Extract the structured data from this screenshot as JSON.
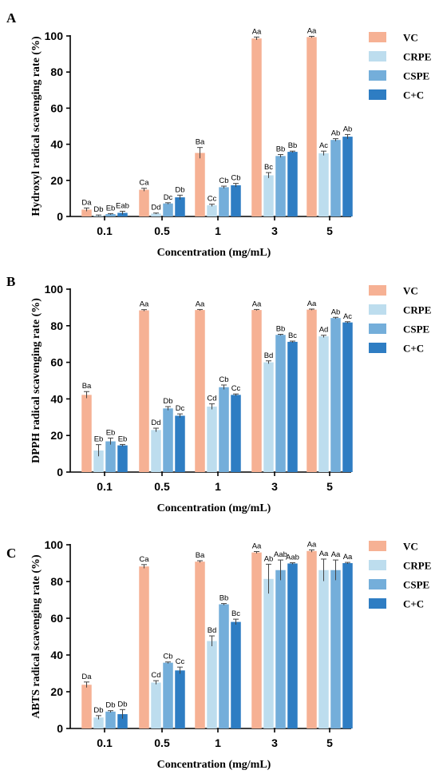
{
  "series_colors": [
    "#F6B194",
    "#BDDDEE",
    "#74AEDA",
    "#2E7DC3"
  ],
  "chart_data": [
    {
      "type": "bar",
      "panel": "A",
      "ylabel": "Hydroxyl radical scavenging rate (%)",
      "xlabel": "Concentration (mg/mL)",
      "ylim": [
        0,
        100
      ],
      "yticks": [
        "0",
        "20",
        "40",
        "60",
        "80",
        "100"
      ],
      "categories": [
        "0.1",
        "0.5",
        "1",
        "3",
        "5"
      ],
      "legend_position": "right",
      "series": [
        {
          "name": "VC",
          "values": [
            3.8,
            14.8,
            35.2,
            98.6,
            99.4
          ],
          "errors": [
            0.9,
            0.8,
            3.0,
            0.8,
            0.4
          ],
          "labels": [
            "Da",
            "Ca",
            "Ba",
            "Aa",
            "Aa"
          ]
        },
        {
          "name": "CRPE",
          "values": [
            0.5,
            1.6,
            6.2,
            22.8,
            35.0
          ],
          "errors": [
            0.3,
            0.3,
            0.6,
            1.5,
            1.2
          ],
          "labels": [
            "Db",
            "Dd",
            "Cc",
            "Bc",
            "Ac"
          ]
        },
        {
          "name": "CSPE",
          "values": [
            1.3,
            7.2,
            16.2,
            33.5,
            42.4
          ],
          "errors": [
            0.3,
            0.4,
            0.6,
            0.8,
            0.7
          ],
          "labels": [
            "Eb",
            "Dc",
            "Cb",
            "Bb",
            "Ab"
          ]
        },
        {
          "name": "C+C",
          "values": [
            2.0,
            10.6,
            17.3,
            35.8,
            44.2
          ],
          "errors": [
            0.9,
            1.2,
            1.0,
            0.4,
            1.2
          ],
          "labels": [
            "Eab",
            "Db",
            "Cb",
            "Bb",
            "Ab"
          ]
        }
      ]
    },
    {
      "type": "bar",
      "panel": "B",
      "ylabel": "DPPH radical scavenging rate (%)",
      "xlabel": "Concentration (mg/mL)",
      "ylim": [
        0,
        100
      ],
      "yticks": [
        "0",
        "20",
        "40",
        "60",
        "80",
        "100"
      ],
      "categories": [
        "0.1",
        "0.5",
        "1",
        "3",
        "5"
      ],
      "legend_position": "right",
      "series": [
        {
          "name": "VC",
          "values": [
            42.2,
            88.4,
            88.6,
            88.6,
            88.8
          ],
          "errors": [
            1.8,
            0.4,
            0.3,
            0.3,
            0.3
          ],
          "labels": [
            "Ba",
            "Aa",
            "Aa",
            "Aa",
            "Aa"
          ]
        },
        {
          "name": "CRPE",
          "values": [
            11.8,
            23.0,
            35.8,
            60.0,
            74.2
          ],
          "errors": [
            3.2,
            1.0,
            1.5,
            0.8,
            0.6
          ],
          "labels": [
            "Eb",
            "Dd",
            "Cd",
            "Bd",
            "Ad"
          ]
        },
        {
          "name": "CSPE",
          "values": [
            16.8,
            34.8,
            46.4,
            75.0,
            84.2
          ],
          "errors": [
            1.8,
            1.0,
            1.2,
            0.3,
            0.4
          ],
          "labels": [
            "Eb",
            "Db",
            "Cb",
            "Bb",
            "Ab"
          ]
        },
        {
          "name": "C+C",
          "values": [
            14.6,
            30.8,
            42.2,
            71.2,
            81.8
          ],
          "errors": [
            0.5,
            1.0,
            0.5,
            0.4,
            0.4
          ],
          "labels": [
            "Eb",
            "Dc",
            "Cc",
            "Bc",
            "Ac"
          ]
        }
      ]
    },
    {
      "type": "bar",
      "panel": "C",
      "ylabel": "ABTS radical scavenging rate (%)",
      "xlabel": "Concentration (mg/mL)",
      "ylim": [
        0,
        100
      ],
      "yticks": [
        "0",
        "20",
        "40",
        "60",
        "80",
        "100"
      ],
      "categories": [
        "0.1",
        "0.5",
        "1",
        "3",
        "5"
      ],
      "legend_position": "right",
      "series": [
        {
          "name": "VC",
          "values": [
            23.8,
            88.2,
            90.8,
            95.8,
            96.6
          ],
          "errors": [
            1.5,
            1.0,
            0.5,
            0.5,
            0.6
          ],
          "labels": [
            "Da",
            "Ca",
            "Ba",
            "Aa",
            "Aa"
          ]
        },
        {
          "name": "CRPE",
          "values": [
            6.0,
            25.0,
            47.6,
            81.4,
            86.2
          ],
          "errors": [
            1.0,
            1.0,
            2.8,
            8.0,
            6.0
          ],
          "labels": [
            "Db",
            "Cd",
            "Bd",
            "Ab",
            "Aa"
          ]
        },
        {
          "name": "CSPE",
          "values": [
            9.2,
            35.8,
            67.6,
            86.2,
            86.2
          ],
          "errors": [
            0.5,
            0.4,
            0.4,
            5.5,
            5.5
          ],
          "labels": [
            "Db",
            "Cb",
            "Bb",
            "Aab",
            "Aa"
          ]
        },
        {
          "name": "C+C",
          "values": [
            7.8,
            31.6,
            58.0,
            89.8,
            90.0
          ],
          "errors": [
            2.5,
            1.8,
            1.5,
            0.4,
            0.4
          ],
          "labels": [
            "Db",
            "Cc",
            "Bc",
            "Aab",
            "Aa"
          ]
        }
      ]
    }
  ]
}
